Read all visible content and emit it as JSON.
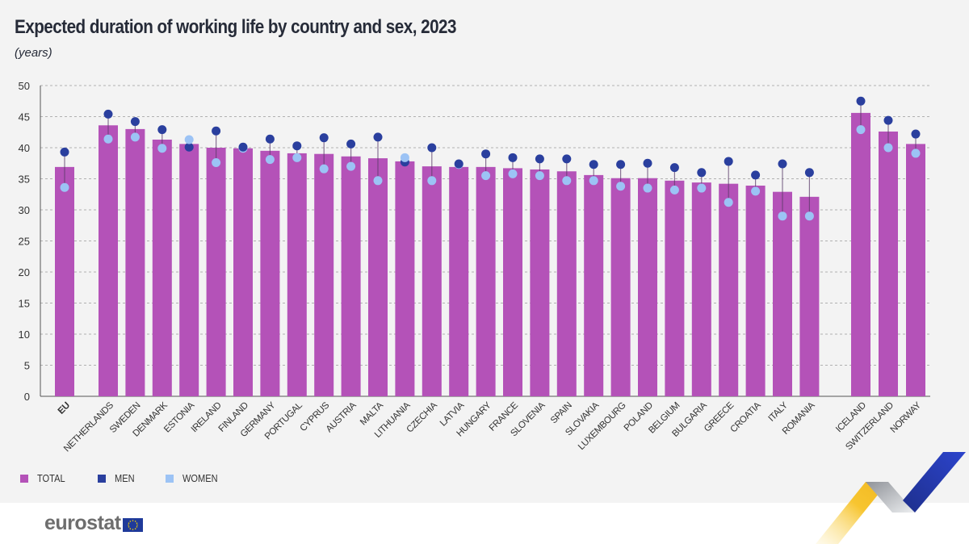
{
  "header": {
    "title": "Expected duration of working life by country and sex, 2023",
    "subtitle": "(years)"
  },
  "legend": [
    {
      "label": "TOTAL",
      "color": "#b452b8"
    },
    {
      "label": "MEN",
      "color": "#2a3f9e"
    },
    {
      "label": "WOMEN",
      "color": "#9cc3f5"
    }
  ],
  "footer": {
    "logo_text": "eurostat"
  },
  "chart_data": {
    "type": "bar",
    "title": "Expected duration of working life by country and sex, 2023",
    "subtitle": "(years)",
    "xlabel": "",
    "ylabel": "",
    "ylim": [
      0,
      50
    ],
    "yticks": [
      0,
      5,
      10,
      15,
      20,
      25,
      30,
      35,
      40,
      45,
      50
    ],
    "grid": true,
    "legend_position": "bottom-left",
    "categories": [
      "EU",
      "NETHERLANDS",
      "SWEDEN",
      "DENMARK",
      "ESTONIA",
      "IRELAND",
      "FINLAND",
      "GERMANY",
      "PORTUGAL",
      "CYPRUS",
      "AUSTRIA",
      "MALTA",
      "LITHUANIA",
      "CZECHIA",
      "LATVIA",
      "HUNGARY",
      "FRANCE",
      "SLOVENIA",
      "SPAIN",
      "SLOVAKIA",
      "LUXEMBOURG",
      "POLAND",
      "BELGIUM",
      "BULGARIA",
      "GREECE",
      "CROATIA",
      "ITALY",
      "ROMANIA",
      "ICELAND",
      "SWITZERLAND",
      "NORWAY"
    ],
    "groups": [
      0,
      1,
      1,
      1,
      1,
      1,
      1,
      1,
      1,
      1,
      1,
      1,
      1,
      1,
      1,
      1,
      1,
      1,
      1,
      1,
      1,
      1,
      1,
      1,
      1,
      1,
      1,
      1,
      2,
      2,
      2
    ],
    "series": [
      {
        "name": "TOTAL",
        "mark": "bar",
        "color": "#b452b8",
        "values": [
          36.9,
          43.6,
          43.0,
          41.3,
          40.6,
          40.0,
          39.9,
          39.5,
          39.1,
          39.0,
          38.6,
          38.3,
          37.8,
          37.0,
          36.9,
          36.9,
          36.7,
          36.5,
          36.2,
          35.6,
          35.1,
          35.1,
          34.7,
          34.4,
          34.2,
          33.9,
          32.9,
          32.1,
          45.6,
          42.6,
          40.6
        ]
      },
      {
        "name": "MEN",
        "mark": "dot",
        "color": "#2a3f9e",
        "values": [
          39.3,
          45.4,
          44.2,
          42.9,
          40.1,
          42.7,
          40.1,
          41.4,
          40.3,
          41.6,
          40.6,
          41.7,
          37.7,
          40.0,
          37.4,
          39.0,
          38.4,
          38.2,
          38.2,
          37.3,
          37.3,
          37.5,
          36.8,
          36.0,
          37.8,
          35.6,
          37.4,
          36.0,
          47.5,
          44.4,
          42.2
        ]
      },
      {
        "name": "WOMEN",
        "mark": "dot",
        "color": "#9cc3f5",
        "values": [
          33.6,
          41.4,
          41.7,
          39.9,
          41.3,
          37.6,
          39.9,
          38.1,
          38.4,
          36.6,
          37.0,
          34.7,
          38.4,
          34.7,
          37.3,
          35.5,
          35.8,
          35.5,
          34.7,
          34.7,
          33.8,
          33.5,
          33.2,
          33.5,
          31.2,
          33.0,
          29.0,
          29.0,
          42.9,
          40.0,
          39.1
        ]
      }
    ]
  }
}
